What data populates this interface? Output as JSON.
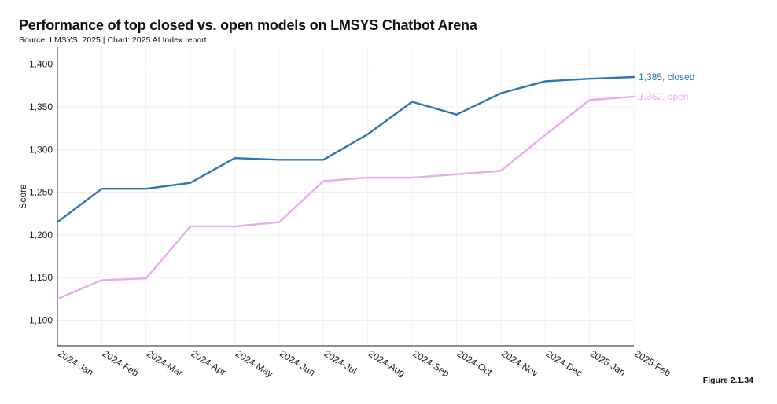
{
  "header": {
    "title": "Performance of top closed vs. open models on LMSYS Chatbot Arena",
    "source": "Source: LMSYS, 2025 | Chart: 2025 AI Index report"
  },
  "footer": {
    "figure": "Figure 2.1.34"
  },
  "chart_data": {
    "type": "line",
    "title": "Performance of top closed vs. open models on LMSYS Chatbot Arena",
    "xlabel": "",
    "ylabel": "Score",
    "ylim": [
      1070,
      1420
    ],
    "yticks": [
      1100,
      1150,
      1200,
      1250,
      1300,
      1350,
      1400
    ],
    "ytick_labels": [
      "1,100",
      "1,150",
      "1,200",
      "1,250",
      "1,300",
      "1,350",
      "1,400"
    ],
    "grid": true,
    "categories": [
      "2024-Jan",
      "2024-Feb",
      "2024-Mar",
      "2024-Apr",
      "2024-May",
      "2024-Jun",
      "2024-Jul",
      "2024-Aug",
      "2024-Sep",
      "2024-Oct",
      "2024-Nov",
      "2024-Dec",
      "2025-Jan",
      "2025-Feb"
    ],
    "series": [
      {
        "name": "closed",
        "color": "#2e75b6",
        "end_label": "1,385, closed",
        "values": [
          1215,
          1254,
          1254,
          1261,
          1290,
          1288,
          1288,
          1318,
          1356,
          1341,
          1366,
          1380,
          1383,
          1385
        ]
      },
      {
        "name": "open",
        "color": "#eba9f5",
        "end_label": "1,362, open",
        "values": [
          1125,
          1147,
          1149,
          1210,
          1210,
          1215,
          1263,
          1267,
          1267,
          1271,
          1275,
          1317,
          1358,
          1362
        ]
      }
    ]
  }
}
